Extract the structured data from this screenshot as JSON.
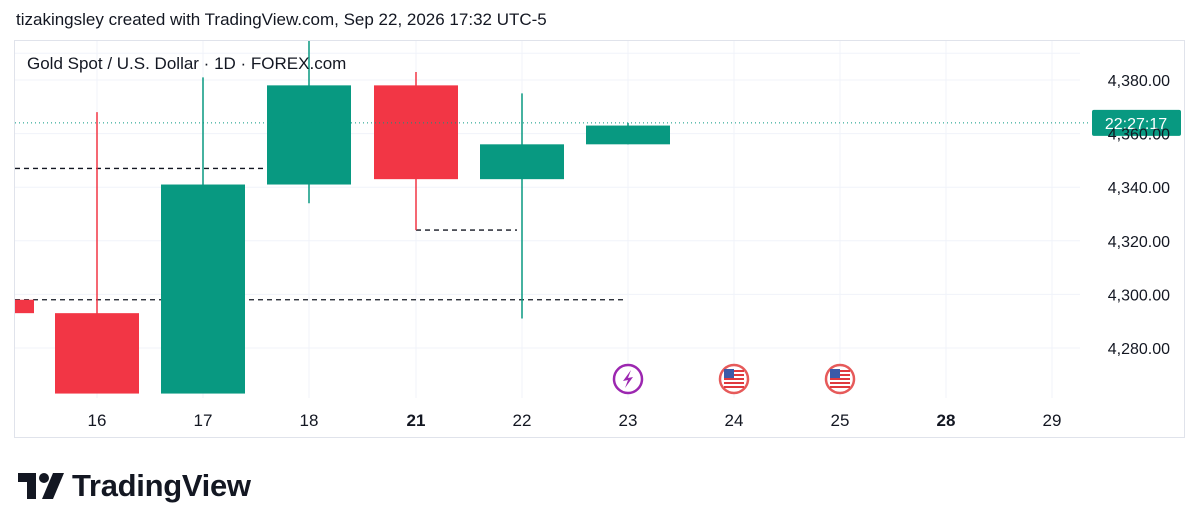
{
  "header": {
    "caption": "tizakingsley created with TradingView.com, Sep 22, 2026 17:32 UTC-5"
  },
  "symbol": {
    "title": "Gold Spot / U.S. Dollar · 1D · FOREX.com"
  },
  "colors": {
    "up": "#089981",
    "down": "#f23645",
    "price_line": "#089981",
    "grid": "#f0f3fa",
    "event_dividends": "#9c27b0"
  },
  "chart_data": {
    "type": "candlestick",
    "title": "Gold Spot / U.S. Dollar · 1D · FOREX.com",
    "ylim": [
      4262,
      4390
    ],
    "y_ticks": [
      "4,280.00",
      "4,300.00",
      "4,320.00",
      "4,340.00",
      "4,360.00",
      "4,380.00"
    ],
    "y_tick_values": [
      4280,
      4300,
      4320,
      4340,
      4360,
      4380
    ],
    "x_ticks": [
      {
        "label": "16",
        "bold": false
      },
      {
        "label": "17",
        "bold": false
      },
      {
        "label": "18",
        "bold": false
      },
      {
        "label": "21",
        "bold": true
      },
      {
        "label": "22",
        "bold": false
      },
      {
        "label": "23",
        "bold": false
      },
      {
        "label": "24",
        "bold": false
      },
      {
        "label": "25",
        "bold": false
      },
      {
        "label": "28",
        "bold": true
      },
      {
        "label": "29",
        "bold": false
      }
    ],
    "candles": [
      {
        "date": "15",
        "open": 4298,
        "high": 4298,
        "low": 4293,
        "close": 4293
      },
      {
        "date": "16",
        "open": 4293,
        "high": 4368,
        "low": 4263,
        "close": 4263
      },
      {
        "date": "17",
        "open": 4263,
        "high": 4381,
        "low": 4263,
        "close": 4341
      },
      {
        "date": "18",
        "open": 4341,
        "high": 4395,
        "low": 4334,
        "close": 4378
      },
      {
        "date": "21",
        "open": 4378,
        "high": 4383,
        "low": 4324,
        "close": 4343
      },
      {
        "date": "22",
        "open": 4343,
        "high": 4375,
        "low": 4291,
        "close": 4356
      },
      {
        "date": "23",
        "open": 4356,
        "high": 4364,
        "low": 4356,
        "close": 4363
      }
    ],
    "reference_lines": [
      {
        "value": 4347,
        "from": "16",
        "to": "18"
      },
      {
        "value": 4324,
        "from": "21",
        "to": "22"
      },
      {
        "value": 4298,
        "from": "16",
        "to": "23"
      }
    ],
    "current_price": 4364,
    "price_label": "22:27:17",
    "events": [
      {
        "date": "23",
        "type": "dividends-icon"
      },
      {
        "date": "24",
        "type": "us-flag-icon"
      },
      {
        "date": "25",
        "type": "us-flag-icon"
      }
    ]
  },
  "footer": {
    "brand": "TradingView"
  }
}
